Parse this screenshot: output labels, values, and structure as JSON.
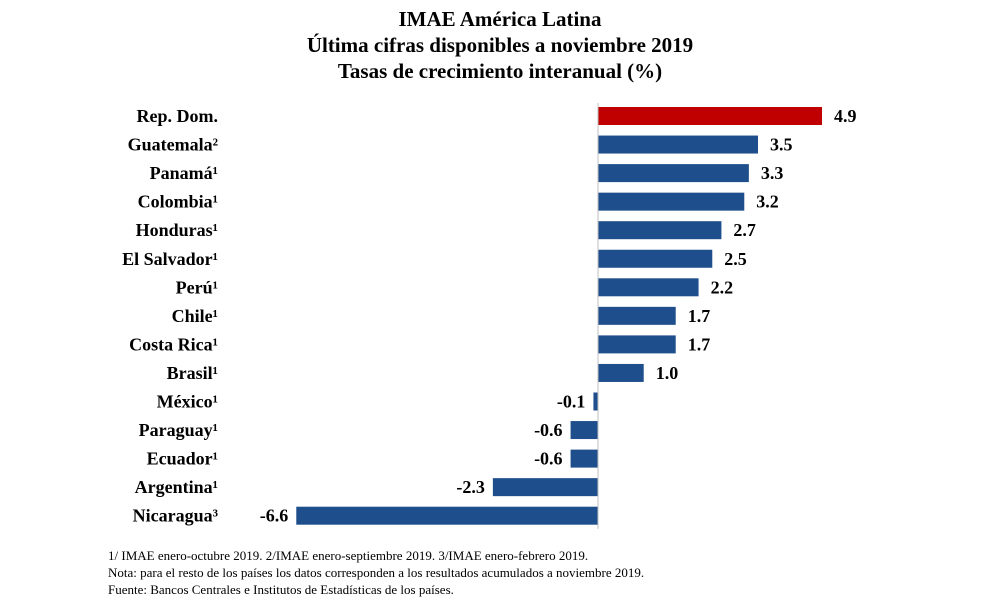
{
  "title": {
    "line1": "IMAE América Latina",
    "line2": "Última cifras disponibles a noviembre 2019",
    "line3": "Tasas de crecimiento interanual (%)"
  },
  "chart_data": {
    "type": "bar",
    "orientation": "horizontal",
    "categories": [
      "Rep. Dom.",
      "Guatemala²",
      "Panamá¹",
      "Colombia¹",
      "Honduras¹",
      "El Salvador¹",
      "Perú¹",
      "Chile¹",
      "Costa Rica¹",
      "Brasil¹",
      "México¹",
      "Paraguay¹",
      "Ecuador¹",
      "Argentina¹",
      "Nicaragua³"
    ],
    "values": [
      4.9,
      3.5,
      3.3,
      3.2,
      2.7,
      2.5,
      2.2,
      1.7,
      1.7,
      1.0,
      -0.1,
      -0.6,
      -0.6,
      -2.3,
      -6.6
    ],
    "value_labels": [
      "4.9",
      "3.5",
      "3.3",
      "3.2",
      "2.7",
      "2.5",
      "2.2",
      "1.7",
      "1.7",
      "1.0",
      "-0.1",
      "-0.6",
      "-0.6",
      "-2.3",
      "-6.6"
    ],
    "highlight_index": 0,
    "colors": {
      "bar": "#1f4e8c",
      "highlight": "#c00000",
      "axis": "#bfbfbf"
    },
    "xlim": [
      -6.6,
      4.9
    ],
    "grid": false,
    "legend": "none"
  },
  "notes": {
    "line1": "1/ IMAE enero-octubre 2019. 2/IMAE enero-septiembre 2019. 3/IMAE enero-febrero 2019.",
    "line2": "Nota: para el resto de los países los datos corresponden a los resultados acumulados a noviembre 2019.",
    "line3": "Fuente: Bancos Centrales e Institutos de Estadísticas de los países."
  }
}
